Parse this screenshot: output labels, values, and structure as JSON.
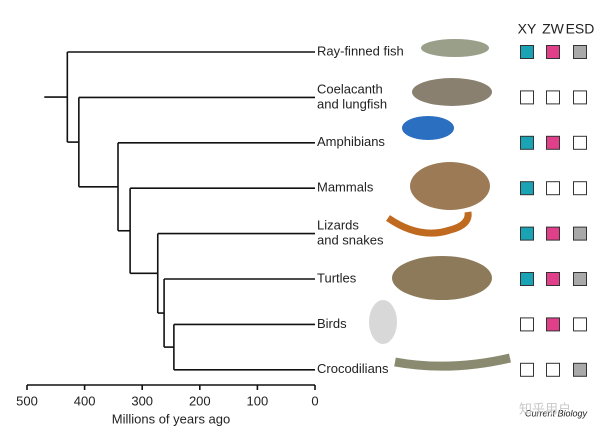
{
  "header": {
    "columns": [
      "XY",
      "ZW",
      "ESD"
    ]
  },
  "tree": {
    "stem_start": 470,
    "age": 430,
    "children": [
      {
        "label": [
          "Ray-finned fish"
        ],
        "XY": true,
        "ZW": true,
        "ESD": true
      },
      {
        "age": 410,
        "children": [
          {
            "label": [
              "Coelacanth",
              "and lungfish"
            ],
            "XY": false,
            "ZW": false,
            "ESD": false
          },
          {
            "age": 342,
            "children": [
              {
                "label": [
                  "Amphibians"
                ],
                "XY": true,
                "ZW": true,
                "ESD": false
              },
              {
                "age": 321,
                "children": [
                  {
                    "label": [
                      "Mammals"
                    ],
                    "XY": true,
                    "ZW": false,
                    "ESD": false
                  },
                  {
                    "age": 273,
                    "children": [
                      {
                        "label": [
                          "Lizards",
                          "and snakes"
                        ],
                        "XY": true,
                        "ZW": true,
                        "ESD": true
                      },
                      {
                        "age": 262,
                        "children": [
                          {
                            "label": [
                              "Turtles"
                            ],
                            "XY": true,
                            "ZW": true,
                            "ESD": true
                          },
                          {
                            "age": 245,
                            "children": [
                              {
                                "label": [
                                  "Birds"
                                ],
                                "XY": false,
                                "ZW": true,
                                "ESD": false
                              },
                              {
                                "label": [
                                  "Crocodilians"
                                ],
                                "XY": false,
                                "ZW": false,
                                "ESD": true
                              }
                            ]
                          }
                        ]
                      }
                    ]
                  }
                ]
              }
            ]
          }
        ]
      }
    ]
  },
  "colors": {
    "XY": "#1aa3b5",
    "ZW": "#e0408a",
    "ESD": "#a9a9a9"
  },
  "axis": {
    "xlim": [
      500,
      0
    ],
    "xticks": [
      500,
      400,
      300,
      200,
      100,
      0
    ],
    "xlabel": "Millions of years ago"
  },
  "credit": "Current Biology",
  "watermark": "知乎用户"
}
